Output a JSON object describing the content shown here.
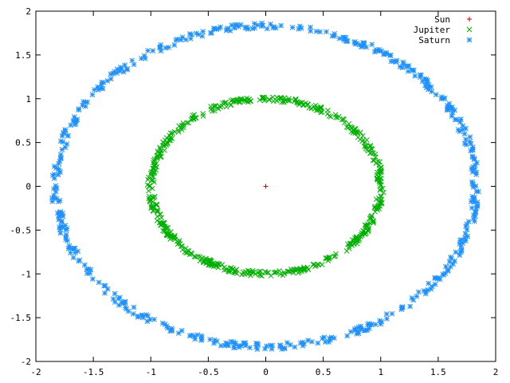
{
  "chart_data": {
    "type": "scatter",
    "title": "",
    "xlabel": "",
    "ylabel": "",
    "xlim": [
      -2,
      2
    ],
    "ylim": [
      -2,
      2
    ],
    "xticks": [
      "-2",
      "-1.5",
      "-1",
      "-0.5",
      "0",
      "0.5",
      "1",
      "1.5",
      "2"
    ],
    "yticks": [
      "2",
      "1.5",
      "1",
      "0.5",
      "0",
      "-0.5",
      "-1",
      "-1.5",
      "-2"
    ],
    "grid": false,
    "legend_position": "top-right",
    "series": [
      {
        "name": "Sun",
        "marker": "plus",
        "color": "#cc0000",
        "x": [
          0
        ],
        "y": [
          0
        ]
      },
      {
        "name": "Jupiter",
        "marker": "cross",
        "color": "#00b000",
        "orbit": {
          "rx": 1.0,
          "ry": 1.0,
          "spread": 0.03
        }
      },
      {
        "name": "Saturn",
        "marker": "star",
        "color": "#1e90ff",
        "orbit": {
          "rx": 1.83,
          "ry": 1.83,
          "spread": 0.035
        }
      }
    ]
  }
}
